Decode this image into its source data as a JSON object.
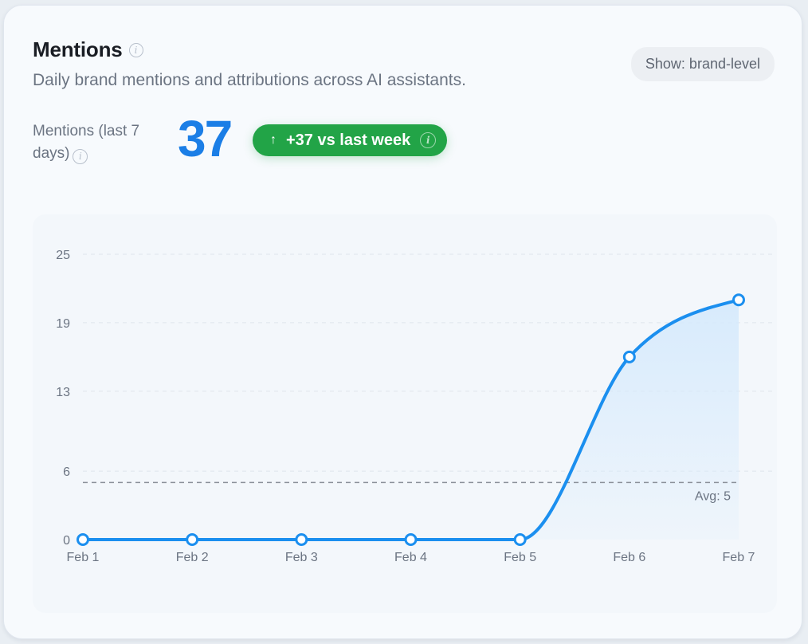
{
  "card": {
    "title": "Mentions",
    "subtitle": "Daily brand mentions and attributions across AI assistants.",
    "show_pill": "Show: brand-level"
  },
  "kpi": {
    "label": "Mentions (last 7 days)",
    "value": "37",
    "delta": "+37 vs last week",
    "delta_arrow": "↑"
  },
  "colors": {
    "line": "#1b8fef",
    "area": "#d6eafc",
    "kpi_value": "#1b7ee6",
    "delta_bg": "#22a447",
    "avg_line": "#8a9099",
    "grid": "#dfe5ec"
  },
  "chart_data": {
    "type": "line",
    "categories": [
      "Feb 1",
      "Feb 2",
      "Feb 3",
      "Feb 4",
      "Feb 5",
      "Feb 6",
      "Feb 7"
    ],
    "series": [
      {
        "values": [
          0,
          0,
          0,
          0,
          0,
          16,
          21
        ]
      }
    ],
    "ylim": [
      0,
      25
    ],
    "yticks": [
      0,
      6,
      13,
      19,
      25
    ],
    "average": {
      "value": 5,
      "label": "Avg: 5"
    },
    "grid": true,
    "legend": false
  }
}
